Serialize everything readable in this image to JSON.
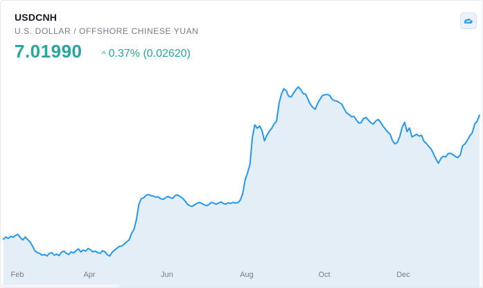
{
  "header": {
    "symbol": "USDCNH",
    "description": "U.S. DOLLAR / OFFSHORE CHINESE YUAN",
    "price": "7.01990",
    "change_arrow": "^",
    "change": "0.37% (0.02620)"
  },
  "colors": {
    "accent": "#26a69a",
    "line": "#2196f3",
    "area": "#e3eef6",
    "logo": "#2e9ee8"
  },
  "icons": {
    "logo": "tradingview-cloud-icon"
  },
  "chart_data": {
    "type": "area",
    "title": "USDCNH",
    "xlabel": "",
    "ylabel": "",
    "x_tick_labels": [
      "Feb",
      "Apr",
      "Jun",
      "Aug",
      "Oct",
      "Dec"
    ],
    "ylim": [
      6.62,
      7.15
    ],
    "grid": false,
    "series": [
      {
        "name": "USDCNH",
        "values": [
          6.686,
          6.692,
          6.688,
          6.694,
          6.691,
          6.696,
          6.699,
          6.69,
          6.684,
          6.692,
          6.685,
          6.679,
          6.668,
          6.655,
          6.65,
          6.648,
          6.643,
          6.645,
          6.641,
          6.648,
          6.65,
          6.643,
          6.646,
          6.642,
          6.651,
          6.654,
          6.648,
          6.645,
          6.652,
          6.649,
          6.655,
          6.66,
          6.652,
          6.657,
          6.654,
          6.661,
          6.658,
          6.652,
          6.654,
          6.65,
          6.648,
          6.655,
          6.652,
          6.644,
          6.641,
          6.651,
          6.657,
          6.662,
          6.667,
          6.668,
          6.673,
          6.679,
          6.684,
          6.701,
          6.712,
          6.738,
          6.779,
          6.795,
          6.797,
          6.804,
          6.806,
          6.803,
          6.802,
          6.799,
          6.8,
          6.795,
          6.793,
          6.797,
          6.801,
          6.798,
          6.796,
          6.803,
          6.805,
          6.801,
          6.797,
          6.79,
          6.781,
          6.776,
          6.774,
          6.778,
          6.782,
          6.785,
          6.782,
          6.779,
          6.776,
          6.779,
          6.785,
          6.783,
          6.78,
          6.783,
          6.786,
          6.782,
          6.78,
          6.784,
          6.782,
          6.785,
          6.783,
          6.784,
          6.791,
          6.808,
          6.845,
          6.864,
          6.887,
          6.96,
          6.993,
          6.984,
          6.99,
          6.978,
          6.95,
          6.965,
          6.976,
          6.984,
          6.996,
          7.003,
          7.05,
          7.075,
          7.09,
          7.085,
          7.07,
          7.068,
          7.078,
          7.088,
          7.095,
          7.088,
          7.077,
          7.076,
          7.062,
          7.048,
          7.04,
          7.035,
          7.051,
          7.062,
          7.072,
          7.074,
          7.075,
          7.072,
          7.062,
          7.058,
          7.057,
          7.053,
          7.049,
          7.036,
          7.025,
          7.021,
          7.015,
          7.016,
          7.007,
          6.998,
          6.999,
          7.01,
          7.013,
          7.006,
          6.999,
          6.995,
          7.003,
          7.008,
          7.001,
          6.99,
          6.982,
          6.974,
          6.968,
          6.95,
          6.942,
          6.946,
          6.962,
          6.987,
          7.0,
          6.975,
          6.985,
          6.961,
          6.964,
          6.968,
          6.963,
          6.965,
          6.949,
          6.943,
          6.935,
          6.928,
          6.915,
          6.901,
          6.89,
          6.903,
          6.909,
          6.907,
          6.916,
          6.917,
          6.913,
          6.908,
          6.905,
          6.912,
          6.937,
          6.942,
          6.952,
          6.964,
          6.972,
          6.995,
          7.003,
          7.019
        ]
      }
    ]
  }
}
